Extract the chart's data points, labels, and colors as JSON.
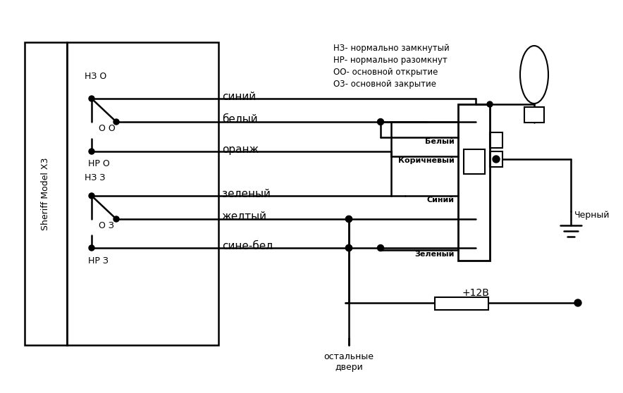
{
  "legend_lines": [
    "НЗ- нормально замкнутый",
    "НР- нормально разомкнут",
    "ОО- основной открытие",
    "О3- основной закрытие"
  ],
  "box_label": "Sheriff Model X3",
  "wire_names": [
    "синий",
    "белый",
    "оранж",
    "зеленый",
    "желтый",
    "сине-бел"
  ],
  "connector_labels": [
    "Белый",
    "Коричневый",
    "Синий",
    "Зеленый"
  ],
  "bottom_label_1": "остальные",
  "bottom_label_2": "двери",
  "power_label": "+12В",
  "ground_label": "Черный",
  "bg_color": "#ffffff",
  "line_color": "#000000"
}
